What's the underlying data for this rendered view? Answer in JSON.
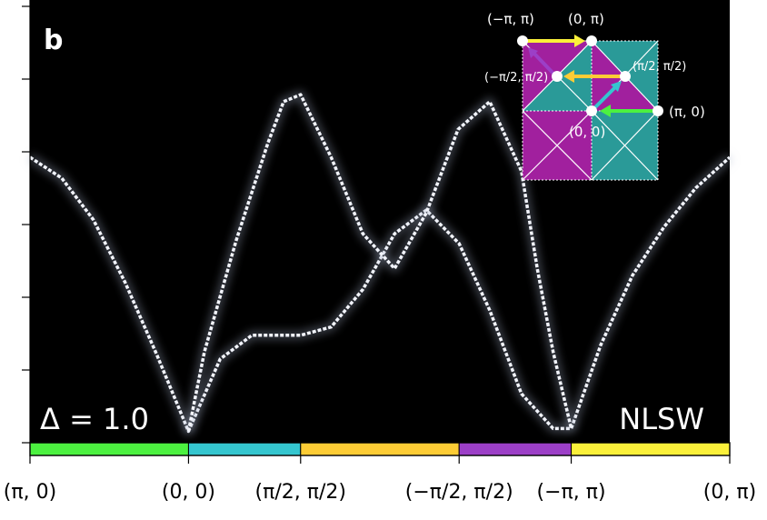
{
  "chart_data": {
    "type": "heatmap",
    "panel_label": "b",
    "parameter_label": "Δ = 1.0",
    "method_label": "NLSW",
    "colormap": "bone",
    "background_color": "#000000",
    "line_color": "#f2f4fb",
    "x_ticks": [
      "(π, 0)",
      "(0, 0)",
      "(π/2, π/2)",
      "(−π/2, π/2)",
      "(−π, π)",
      "(0, π)"
    ],
    "x_tick_positions": [
      0,
      1,
      1.707,
      2.707,
      3.414,
      4.414
    ],
    "y_range": [
      0,
      3.0
    ],
    "y_tick_count": 7,
    "path_segments": [
      {
        "from": "(π, 0)",
        "to": "(0, 0)",
        "color": "#4cf140"
      },
      {
        "from": "(0, 0)",
        "to": "(π/2, π/2)",
        "color": "#35c6cf"
      },
      {
        "from": "(π/2, π/2)",
        "to": "(−π/2, π/2)",
        "color": "#fdcc35"
      },
      {
        "from": "(−π/2, π/2)",
        "to": "(−π, π)",
        "color": "#9c3fc7"
      },
      {
        "from": "(−π, π)",
        "to": "(0, π)",
        "color": "#fbf03a"
      }
    ],
    "branches": [
      {
        "name": "",
        "x": [
          0,
          0.2,
          0.4,
          0.6,
          0.8,
          1.0,
          1.2,
          1.4,
          1.6,
          1.707,
          1.9,
          2.1,
          2.3,
          2.5,
          2.707,
          2.9,
          3.1,
          3.3,
          3.414,
          3.6,
          3.8,
          4.0,
          4.2,
          4.414
        ],
        "y": [
          2.0,
          1.85,
          1.55,
          1.1,
          0.58,
          0.03,
          0.55,
          0.72,
          0.72,
          0.72,
          0.78,
          1.05,
          1.45,
          1.62,
          1.38,
          0.9,
          0.3,
          0.05,
          0.05,
          0.65,
          1.15,
          1.5,
          1.78,
          2.0
        ]
      },
      {
        "name": "",
        "x": [
          1.0,
          1.1,
          1.2,
          1.3,
          1.4,
          1.5,
          1.6,
          1.707,
          1.9,
          2.1,
          2.3,
          2.5,
          2.7,
          2.9,
          3.1,
          3.2,
          3.3,
          3.414
        ],
        "y": [
          0.03,
          0.6,
          1.0,
          1.4,
          1.75,
          2.1,
          2.4,
          2.45,
          2.0,
          1.45,
          1.2,
          1.6,
          2.2,
          2.4,
          1.9,
          1.2,
          0.6,
          0.05
        ]
      }
    ]
  },
  "inset": {
    "labels": {
      "m_pi_pi": "(−π, π)",
      "zero_pi": "(0, π)",
      "m_half": "(−π/2, π/2)",
      "p_half": "(π/2, π/2)",
      "pi_zero": "(π, 0)",
      "zero_zero": "(0, 0)"
    },
    "colors": {
      "teal": "#2a9a98",
      "magenta": "#a1209e"
    }
  }
}
